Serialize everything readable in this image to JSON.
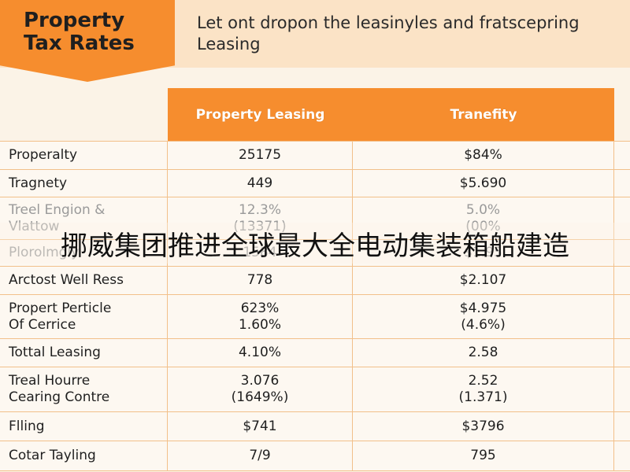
{
  "header": {
    "title": "Property\nTax Rates",
    "subtitle_line1": "Let ont dropon the leasinyles and fratscepring",
    "subtitle_line2": "Leasing"
  },
  "table": {
    "columns": [
      "Property Leasing",
      "Tranefity"
    ],
    "rows": [
      {
        "label": "Properalty",
        "v1": "25175",
        "v2": "$84%"
      },
      {
        "label": "Tragnety",
        "v1": "449",
        "v2": "$5.690"
      },
      {
        "label": "Treel Engion &\nVlattow",
        "v1": "12.3%\n(13371)",
        "v2": "5.0%\n(00%"
      },
      {
        "label": "Plorolmgly",
        "v1": "1584",
        "v2": "$1.95"
      },
      {
        "label": "Arctost Well Ress",
        "v1": "778",
        "v2": "$2.107"
      },
      {
        "label": "Propert Perticle\nOf Cerrice",
        "v1": "623%\n1.60%",
        "v2": "$4.975\n(4.6%)"
      },
      {
        "label": "Tottal Leasing",
        "v1": "4.10%",
        "v2": "2.58"
      },
      {
        "label": "Treal Hourre\nCearing Contre",
        "v1": "3.076\n(1649%)",
        "v2": "2.52\n(1.371)"
      },
      {
        "label": "Flling",
        "v1": "$741",
        "v2": "$3796"
      },
      {
        "label": "Cotar Tayling",
        "v1": "7/9",
        "v2": "795"
      }
    ]
  },
  "overlay_caption": "挪威集团推进全球最大全电动集装箱船建造",
  "colors": {
    "accent": "#f68d2e",
    "banner_bg": "#fbe3c6",
    "grid_line": "#f2c08a",
    "page_bg": "#fbf3e7"
  }
}
